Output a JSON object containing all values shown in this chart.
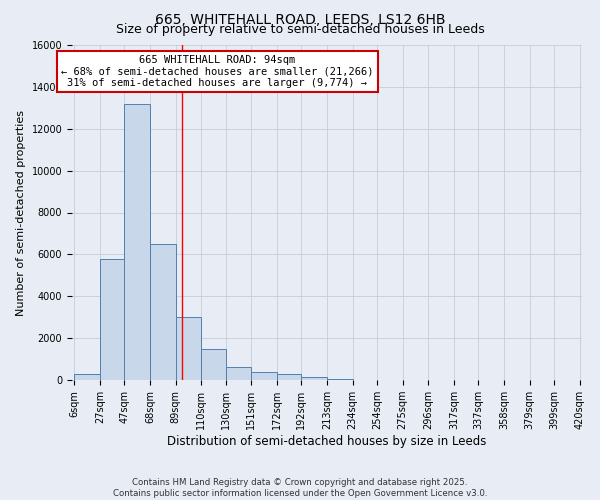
{
  "title": "665, WHITEHALL ROAD, LEEDS, LS12 6HB",
  "subtitle": "Size of property relative to semi-detached houses in Leeds",
  "xlabel": "Distribution of semi-detached houses by size in Leeds",
  "ylabel": "Number of semi-detached properties",
  "bin_edges": [
    6,
    27,
    47,
    68,
    89,
    110,
    130,
    151,
    172,
    192,
    213,
    234,
    254,
    275,
    296,
    317,
    337,
    358,
    379,
    399,
    420
  ],
  "bar_heights": [
    280,
    5800,
    13200,
    6500,
    3000,
    1500,
    600,
    380,
    270,
    120,
    70,
    10,
    5,
    0,
    0,
    0,
    0,
    0,
    0,
    0
  ],
  "bar_color": "#c8d8ea",
  "bar_edge_color": "#5080b0",
  "grid_color": "#c8ccd8",
  "background_color": "#e8ecf4",
  "axes_background": "#e8ecf4",
  "red_line_x": 94,
  "ylim": [
    0,
    16000
  ],
  "yticks": [
    0,
    2000,
    4000,
    6000,
    8000,
    10000,
    12000,
    14000,
    16000
  ],
  "annotation_title": "665 WHITEHALL ROAD: 94sqm",
  "annotation_line1": "← 68% of semi-detached houses are smaller (21,266)",
  "annotation_line2": "31% of semi-detached houses are larger (9,774) →",
  "annotation_box_color": "#ffffff",
  "annotation_box_edge_color": "#cc0000",
  "footer_line1": "Contains HM Land Registry data © Crown copyright and database right 2025.",
  "footer_line2": "Contains public sector information licensed under the Open Government Licence v3.0.",
  "title_fontsize": 10,
  "subtitle_fontsize": 9,
  "tick_fontsize": 7,
  "xlabel_fontsize": 8.5,
  "ylabel_fontsize": 8,
  "ann_fontsize": 7.5,
  "footer_fontsize": 6.2
}
